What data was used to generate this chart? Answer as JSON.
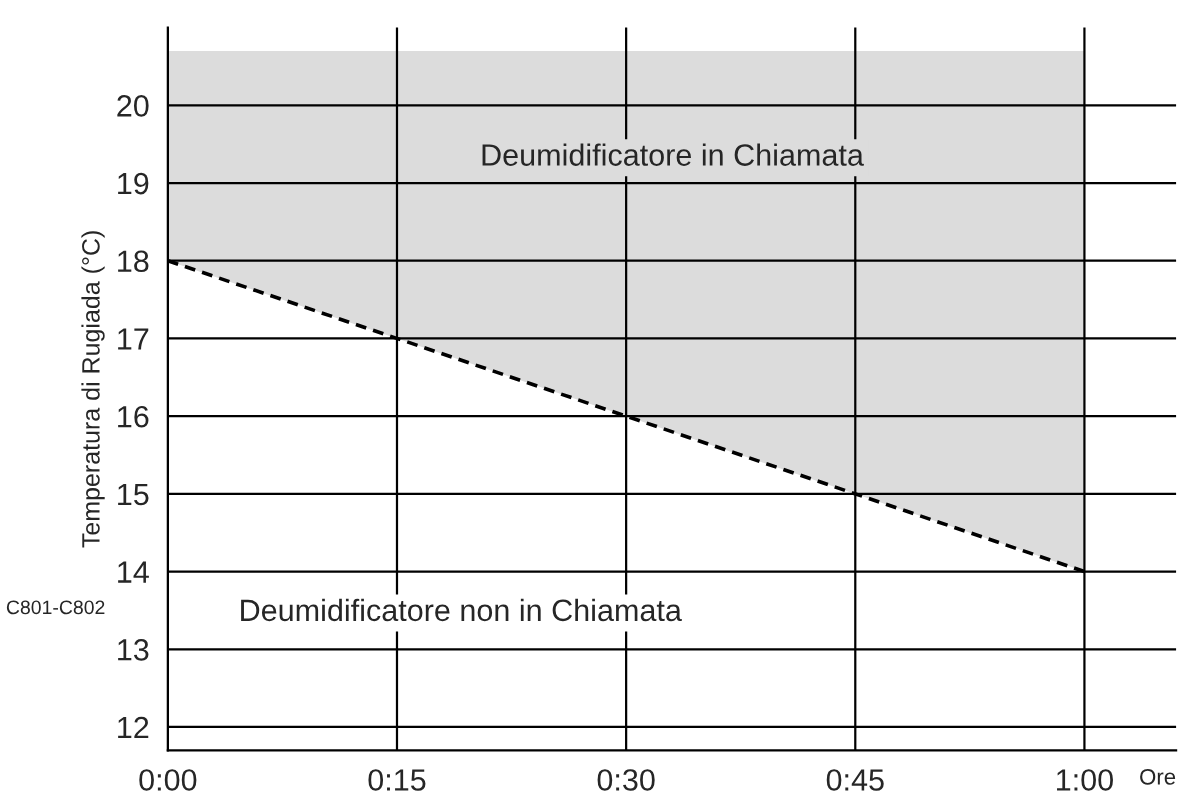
{
  "chart_data": {
    "type": "line",
    "xlabel": "Ore",
    "ylabel": "Temperatura di Rugiada (°C)",
    "series": [
      {
        "color": "#000000",
        "line_style": "dashed",
        "x": [
          0,
          1
        ],
        "values": [
          18,
          14
        ],
        "lower": [
          18,
          14
        ],
        "upper": [
          20.7,
          20.7
        ]
      }
    ],
    "xlim": [
      0,
      1.1
    ],
    "ylim": [
      11.7,
      21.0
    ],
    "xticks": [
      {
        "value": 0,
        "label": "0:00"
      },
      {
        "value": 0.25,
        "label": "0:15"
      },
      {
        "value": 0.5,
        "label": "0:30"
      },
      {
        "value": 0.75,
        "label": "0:45"
      },
      {
        "value": 1,
        "label": "1:00"
      }
    ],
    "yticks": [
      12,
      13,
      14,
      15,
      16,
      17,
      18,
      19,
      20
    ],
    "grid": true,
    "annotations": [
      "Deumidificatore in Chiamata",
      "Deumidificatore non in Chiamata",
      "C801-C802"
    ]
  }
}
